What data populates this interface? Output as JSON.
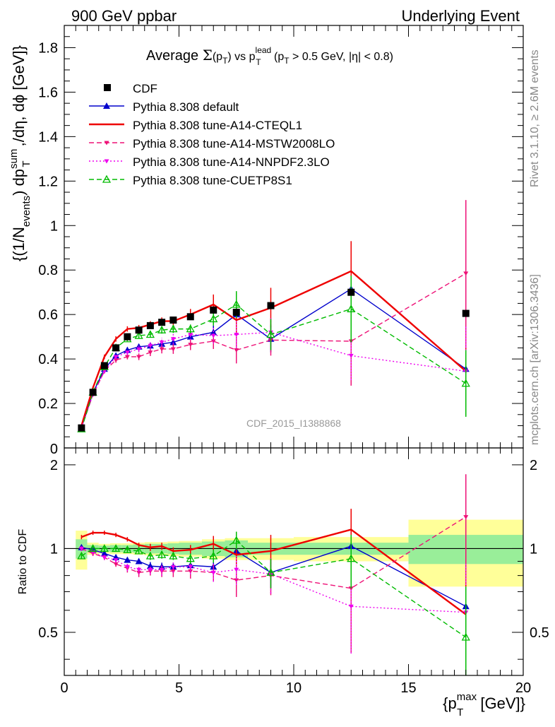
{
  "header": {
    "left": "900 GeV ppbar",
    "right": "Underlying Event"
  },
  "side_labels": {
    "rivet": "Rivet 3.1.10, ≥ 2.6M events",
    "mcplots": "mcplots.cern.ch [arXiv:1306.3436]"
  },
  "chart_data": {
    "type": "line",
    "title": "Average Σ(p_T) vs p_T^lead (p_T > 0.5 GeV, |η| < 0.8)",
    "title_parts": {
      "t1": "Average ",
      "sigma": "Σ",
      "t2": "(p",
      "sub_T": "T",
      "t3": ") vs p",
      "sup_lead": "lead",
      "sub_T2": "T",
      "t4": " (p",
      "sub_T3": "T",
      "t5": " > 0.5 GeV, |η| < 0.8)"
    },
    "watermark": "CDF_2015_I1388868",
    "ylabel_parts": {
      "a": "{(1/N",
      "sub_events": "events",
      "b": ") dp",
      "sup_sum": "sum",
      "sub_T": "T",
      "c": " ,/dη, dϕ [GeV]}"
    },
    "xlabel_parts": {
      "a": "{p",
      "sup_max": "max",
      "sub_T": "T",
      "b": " [GeV]}"
    },
    "ratio_ylabel": "Ratio to CDF",
    "xlim": [
      0,
      20
    ],
    "ylim": [
      0,
      1.9
    ],
    "ratio_ylim": [
      0.35,
      2.3
    ],
    "x_ticks": [
      0,
      5,
      10,
      15,
      20
    ],
    "x_tick_labels": [
      "0",
      "5",
      "10",
      "15",
      "20"
    ],
    "y_ticks": [
      0.2,
      0.4,
      0.6,
      0.8,
      1,
      1.2,
      1.4,
      1.6,
      1.8
    ],
    "y_tick_labels": [
      "0.2",
      "0.4",
      "0.6",
      "0.8",
      "1",
      "1.2",
      "1.4",
      "1.6",
      "1.8"
    ],
    "y_zero_label": "0",
    "ratio_ticks": [
      0.5,
      1,
      2
    ],
    "ratio_tick_labels": [
      "0.5",
      "1",
      "2"
    ],
    "legend_position": "top-left",
    "x": [
      0.75,
      1.25,
      1.75,
      2.25,
      2.75,
      3.25,
      3.75,
      4.25,
      4.75,
      5.5,
      6.5,
      7.5,
      9.0,
      12.5,
      17.5
    ],
    "bin_edges": [
      0.5,
      1.0,
      1.5,
      2.0,
      2.5,
      3.0,
      3.5,
      4.0,
      4.5,
      5.0,
      6.0,
      7.0,
      8.0,
      10.0,
      15.0,
      20.0
    ],
    "data": {
      "name": "CDF",
      "values": [
        0.09,
        0.25,
        0.37,
        0.45,
        0.5,
        0.53,
        0.55,
        0.565,
        0.575,
        0.59,
        0.62,
        0.61,
        0.64,
        0.7,
        0.605
      ],
      "rel_err_inner": [
        0.08,
        0.03,
        0.025,
        0.03,
        0.03,
        0.035,
        0.04,
        0.04,
        0.045,
        0.05,
        0.06,
        0.07,
        0.05,
        0.05,
        0.12
      ],
      "rel_err_outer": [
        0.16,
        0.05,
        0.04,
        0.045,
        0.045,
        0.05,
        0.055,
        0.055,
        0.06,
        0.065,
        0.08,
        0.09,
        0.09,
        0.1,
        0.27
      ]
    },
    "series": [
      {
        "name": "Pythia 8.308 default",
        "color": "#0000cc",
        "style": "solid",
        "marker": "triangle-filled",
        "values": [
          0.092,
          0.248,
          0.355,
          0.415,
          0.44,
          0.455,
          0.46,
          0.468,
          0.475,
          0.5,
          0.52,
          0.6,
          0.49,
          0.715,
          0.355
        ],
        "errors": [
          0.003,
          0.005,
          0.008,
          0.01,
          0.01,
          0.012,
          0.014,
          0.016,
          0.018,
          0.02,
          0.03,
          0.05,
          0.06,
          0.15,
          0.2
        ],
        "ratio": [
          1.01,
          0.99,
          0.96,
          0.93,
          0.91,
          0.9,
          0.865,
          0.86,
          0.86,
          0.87,
          0.86,
          0.98,
          0.82,
          1.02,
          0.62
        ],
        "ratio_errors": [
          0.02,
          0.02,
          0.02,
          0.02,
          0.02,
          0.02,
          0.03,
          0.03,
          0.03,
          0.04,
          0.05,
          0.08,
          0.1,
          0.22,
          0.3
        ]
      },
      {
        "name": "Pythia 8.308 tune-A14-CTEQL1",
        "color": "#ee0000",
        "style": "solid",
        "marker": "none",
        "values": [
          0.1,
          0.27,
          0.41,
          0.49,
          0.535,
          0.54,
          0.555,
          0.57,
          0.57,
          0.6,
          0.645,
          0.575,
          0.63,
          0.795,
          0.345
        ],
        "errors": [
          0.004,
          0.006,
          0.01,
          0.012,
          0.012,
          0.013,
          0.015,
          0.017,
          0.02,
          0.025,
          0.045,
          0.06,
          0.09,
          0.135,
          0.2
        ],
        "ratio": [
          1.1,
          1.14,
          1.14,
          1.12,
          1.08,
          1.03,
          1.01,
          1.02,
          0.98,
          0.99,
          1.04,
          0.95,
          0.98,
          1.17,
          0.58
        ],
        "ratio_errors": [
          0.02,
          0.02,
          0.02,
          0.02,
          0.02,
          0.02,
          0.03,
          0.03,
          0.03,
          0.04,
          0.07,
          0.09,
          0.14,
          0.22,
          0.32
        ]
      },
      {
        "name": "Pythia 8.308 tune-A14-MSTW2008LO",
        "color": "#ee1177",
        "style": "dashed",
        "marker": "triangle-down",
        "values": [
          0.09,
          0.24,
          0.345,
          0.395,
          0.41,
          0.41,
          0.43,
          0.445,
          0.445,
          0.465,
          0.48,
          0.44,
          0.485,
          0.48,
          0.785
        ],
        "errors": [
          0.004,
          0.006,
          0.01,
          0.012,
          0.012,
          0.015,
          0.017,
          0.02,
          0.022,
          0.025,
          0.035,
          0.06,
          0.07,
          0.2,
          0.33
        ],
        "ratio": [
          1.0,
          0.96,
          0.93,
          0.88,
          0.85,
          0.82,
          0.83,
          0.83,
          0.83,
          0.83,
          0.82,
          0.77,
          0.8,
          0.72,
          1.3
        ],
        "ratio_errors": [
          0.02,
          0.02,
          0.02,
          0.02,
          0.03,
          0.03,
          0.03,
          0.04,
          0.04,
          0.05,
          0.06,
          0.1,
          0.12,
          0.3,
          0.55
        ]
      },
      {
        "name": "Pythia 8.308 tune-A14-NNPDF2.3LO",
        "color": "#ee00ee",
        "style": "dotted",
        "marker": "triangle-down",
        "values": [
          0.09,
          0.24,
          0.345,
          0.41,
          0.43,
          0.445,
          0.46,
          0.475,
          0.49,
          0.51,
          0.505,
          0.51,
          0.52,
          0.415,
          0.345
        ],
        "errors": [
          0.004,
          0.006,
          0.01,
          0.012,
          0.012,
          0.015,
          0.017,
          0.02,
          0.022,
          0.025,
          0.035,
          0.06,
          0.07,
          0.11,
          0.2
        ],
        "ratio": [
          1.0,
          0.97,
          0.93,
          0.91,
          0.86,
          0.84,
          0.84,
          0.84,
          0.86,
          0.86,
          0.82,
          0.84,
          0.81,
          0.62,
          0.59
        ],
        "ratio_errors": [
          0.02,
          0.02,
          0.02,
          0.02,
          0.03,
          0.03,
          0.03,
          0.04,
          0.04,
          0.05,
          0.06,
          0.1,
          0.12,
          0.2,
          0.3
        ]
      },
      {
        "name": "Pythia 8.308 tune-CUETP8S1",
        "color": "#00bb00",
        "style": "dashed",
        "marker": "triangle-open",
        "values": [
          0.085,
          0.25,
          0.365,
          0.45,
          0.49,
          0.505,
          0.51,
          0.53,
          0.535,
          0.535,
          0.58,
          0.645,
          0.51,
          0.625,
          0.29
        ],
        "errors": [
          0.003,
          0.005,
          0.008,
          0.01,
          0.01,
          0.012,
          0.014,
          0.016,
          0.018,
          0.02,
          0.03,
          0.06,
          0.07,
          0.15,
          0.15
        ],
        "ratio": [
          0.94,
          1.0,
          1.0,
          1.0,
          0.99,
          0.98,
          0.94,
          0.95,
          0.94,
          0.92,
          0.94,
          1.07,
          0.82,
          0.92,
          0.48
        ],
        "ratio_errors": [
          0.02,
          0.02,
          0.02,
          0.02,
          0.02,
          0.02,
          0.03,
          0.03,
          0.03,
          0.04,
          0.05,
          0.08,
          0.1,
          0.2,
          0.25
        ]
      }
    ]
  }
}
